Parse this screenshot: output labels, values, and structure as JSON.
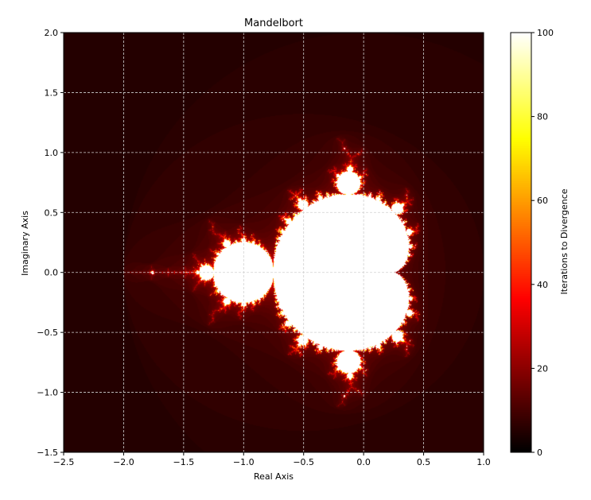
{
  "chart_data": {
    "type": "heatmap",
    "title": "Mandelbort",
    "xlabel": "Real Axis",
    "ylabel": "Imaginary Axis",
    "xlim": [
      -2.5,
      1.0
    ],
    "ylim": [
      -1.5,
      2.0
    ],
    "xticks": [
      -2.5,
      -2.0,
      -1.5,
      -1.0,
      -0.5,
      0.0,
      0.5,
      1.0
    ],
    "yticks": [
      -1.5,
      -1.0,
      -0.5,
      0.0,
      0.5,
      1.0,
      1.5,
      2.0
    ],
    "xtick_labels": [
      "−2.5",
      "−2.0",
      "−1.5",
      "−1.0",
      "−0.5",
      "0.0",
      "0.5",
      "1.0"
    ],
    "ytick_labels": [
      "−1.5",
      "−1.0",
      "−0.5",
      "0.0",
      "0.5",
      "1.0",
      "1.5",
      "2.0"
    ],
    "grid": true,
    "max_iterations": 100,
    "colormap": "hot",
    "colorbar": {
      "label": "Iterations to Divergence",
      "range": [
        0,
        100
      ],
      "ticks": [
        0,
        20,
        40,
        60,
        80,
        100
      ],
      "tick_labels": [
        "0",
        "20",
        "40",
        "60",
        "80",
        "100"
      ]
    }
  }
}
